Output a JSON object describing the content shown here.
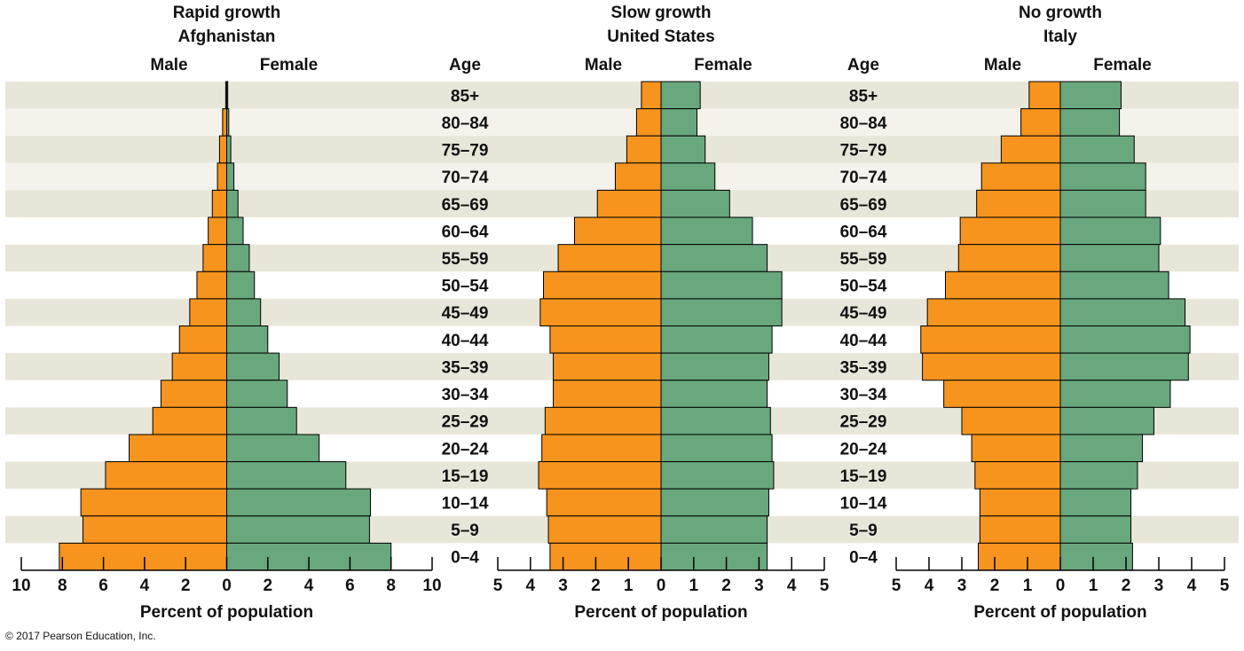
{
  "chart_data": [
    {
      "type": "pyramid",
      "title": "Rapid growth",
      "subtitle": "Afghanistan",
      "categories": [
        null,
        null,
        null,
        null,
        null,
        null,
        null,
        null,
        null,
        null,
        null,
        null,
        null,
        null,
        null,
        null,
        null,
        null
      ],
      "series": [
        {
          "name": "Male",
          "color": "#f7941d",
          "values": [
            0.05,
            0.2,
            0.35,
            0.45,
            0.7,
            0.9,
            1.15,
            1.45,
            1.8,
            2.3,
            2.65,
            3.2,
            3.6,
            4.75,
            5.9,
            7.1,
            7.0,
            8.15
          ]
        },
        {
          "name": "Female",
          "color": "#69a77e",
          "values": [
            0.05,
            0.1,
            0.2,
            0.35,
            0.55,
            0.8,
            1.1,
            1.35,
            1.65,
            2.0,
            2.55,
            2.95,
            3.4,
            4.5,
            5.8,
            7.0,
            6.95,
            8.0
          ]
        }
      ],
      "xlabel": "Percent of population",
      "xlim": [
        -10,
        10
      ],
      "xticks": [
        {
          "value": -10,
          "label": "10"
        },
        {
          "value": -8,
          "label": "8"
        },
        {
          "value": -6,
          "label": "6"
        },
        {
          "value": -4,
          "label": "4"
        },
        {
          "value": -2,
          "label": "2"
        },
        0,
        2,
        4,
        6,
        8,
        10
      ]
    },
    {
      "type": "pyramid",
      "title": "Slow growth",
      "subtitle": "United States",
      "age_label": "Age",
      "categories": [
        "85+",
        "80–84",
        "75–79",
        "70–74",
        "65–69",
        "60–64",
        "55–59",
        "50–54",
        "45–49",
        "40–44",
        "35–39",
        "30–34",
        "25–29",
        "20–24",
        "15–19",
        "10–14",
        "5–9",
        "0–4"
      ],
      "series": [
        {
          "name": "Male",
          "color": "#f7941d",
          "values": [
            0.6,
            0.75,
            1.05,
            1.4,
            1.95,
            2.65,
            3.15,
            3.6,
            3.7,
            3.4,
            3.3,
            3.3,
            3.55,
            3.65,
            3.75,
            3.5,
            3.45,
            3.4
          ]
        },
        {
          "name": "Female",
          "color": "#69a77e",
          "values": [
            1.2,
            1.1,
            1.35,
            1.65,
            2.1,
            2.8,
            3.25,
            3.7,
            3.7,
            3.4,
            3.3,
            3.25,
            3.35,
            3.4,
            3.45,
            3.3,
            3.25,
            3.25
          ]
        }
      ],
      "xlabel": "Percent of population",
      "xlim": [
        -5,
        5
      ],
      "xticks": [
        {
          "value": -5,
          "label": "5"
        },
        {
          "value": -4,
          "label": "4"
        },
        {
          "value": -3,
          "label": "3"
        },
        {
          "value": -2,
          "label": "2"
        },
        {
          "value": -1,
          "label": "1"
        },
        0,
        1,
        2,
        3,
        4,
        5
      ]
    },
    {
      "type": "pyramid",
      "title": "No growth",
      "subtitle": "Italy",
      "age_label": "Age",
      "categories": [
        "85+",
        "80–84",
        "75–79",
        "70–74",
        "65–69",
        "60–64",
        "55–59",
        "50–54",
        "45–49",
        "40–44",
        "35–39",
        "30–34",
        "25–29",
        "20–24",
        "15–19",
        "10–14",
        "5–9",
        "0–4"
      ],
      "series": [
        {
          "name": "Male",
          "color": "#f7941d",
          "values": [
            0.95,
            1.2,
            1.8,
            2.4,
            2.55,
            3.05,
            3.1,
            3.5,
            4.05,
            4.25,
            4.2,
            3.55,
            3.0,
            2.7,
            2.6,
            2.45,
            2.45,
            2.5
          ]
        },
        {
          "name": "Female",
          "color": "#69a77e",
          "values": [
            1.85,
            1.8,
            2.25,
            2.6,
            2.6,
            3.05,
            3.0,
            3.3,
            3.8,
            3.95,
            3.9,
            3.35,
            2.85,
            2.5,
            2.35,
            2.15,
            2.15,
            2.2
          ]
        }
      ],
      "xlabel": "Percent of population",
      "xlim": [
        -5,
        5
      ],
      "xticks": [
        {
          "value": -5,
          "label": "5"
        },
        {
          "value": -4,
          "label": "4"
        },
        {
          "value": -3,
          "label": "3"
        },
        {
          "value": -2,
          "label": "2"
        },
        {
          "value": -1,
          "label": "1"
        },
        0,
        1,
        2,
        3,
        4,
        5
      ]
    }
  ],
  "source": "© 2017 Pearson Education, Inc."
}
